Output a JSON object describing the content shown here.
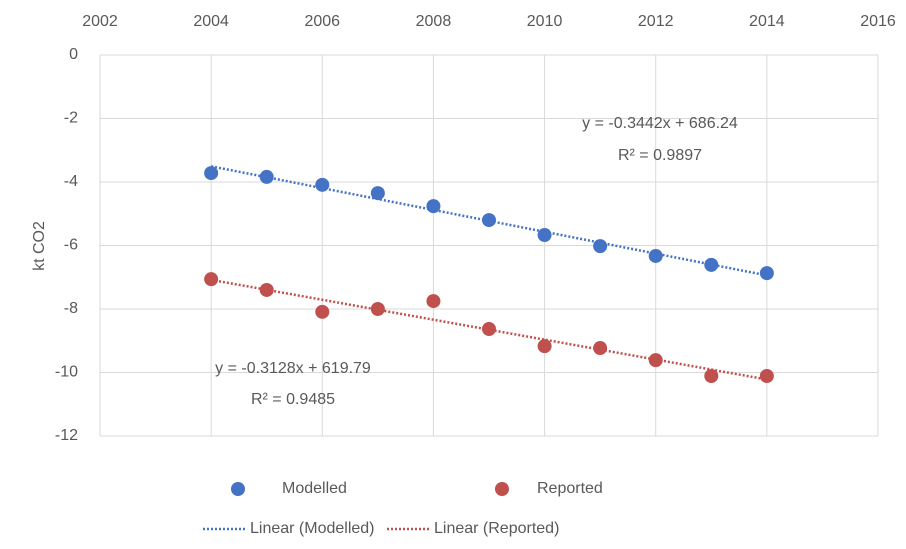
{
  "chart_data": {
    "type": "scatter",
    "y_label": "kt CO2",
    "x": [
      2004,
      2005,
      2006,
      2007,
      2008,
      2009,
      2010,
      2011,
      2012,
      2013,
      2014
    ],
    "xlim": [
      2002,
      2016
    ],
    "xticks": [
      2002,
      2004,
      2006,
      2008,
      2010,
      2012,
      2014,
      2016
    ],
    "ylim": [
      -12,
      0
    ],
    "yticks": [
      0,
      -2,
      -4,
      -6,
      -8,
      -10,
      -12
    ],
    "grid": true,
    "legend": "bottom",
    "series": [
      {
        "name": "Modelled",
        "color": "#4472c4",
        "values": [
          -3.72,
          -3.84,
          -4.09,
          -4.35,
          -4.76,
          -5.2,
          -5.67,
          -6.02,
          -6.33,
          -6.61,
          -6.87
        ],
        "trendline_name": "Linear (Modelled)",
        "equation": "y = -0.3442x + 686.24",
        "r2": "R² = 0.9897"
      },
      {
        "name": "Reported",
        "color": "#c0504d",
        "values": [
          -7.06,
          -7.4,
          -8.09,
          -8.0,
          -7.75,
          -8.63,
          -9.17,
          -9.23,
          -9.61,
          -10.11,
          -10.11
        ],
        "trendline_name": "Linear (Reported)",
        "equation": "y = -0.3128x + 619.79",
        "r2": "R² = 0.9485"
      }
    ]
  }
}
